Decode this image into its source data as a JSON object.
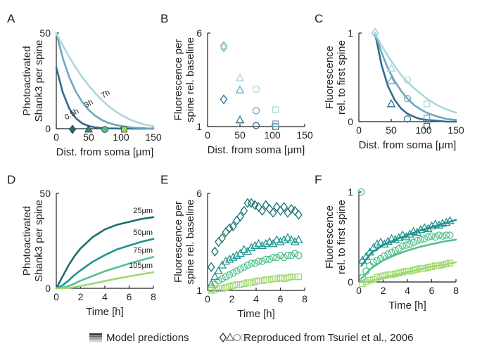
{
  "colors": {
    "dark": "#1f5f78",
    "c25": "#2a6f8c",
    "c50": "#4f8fae",
    "c75": "#7fb0c6",
    "c105": "#9ecbd8",
    "g25": "#1a6e72",
    "g50": "#1f948f",
    "g75": "#53c08e",
    "g105": "#9fd86c",
    "c05": "#2e6c8e",
    "c3h": "#6ea7c0",
    "c7h": "#a8d8e0"
  },
  "legend": {
    "model_label": "Model predictions",
    "data_label": "Reproduced from Tsuriel et al., 2006"
  },
  "chart_data": [
    {
      "panel": "A",
      "type": "line",
      "ylabel": [
        "Photoactivated",
        "Shank3 per spine"
      ],
      "xlabel": "Dist. from soma [μm]",
      "xlim": [
        0,
        150
      ],
      "ylim": [
        0,
        50
      ],
      "xticks": [
        0,
        50,
        100,
        150
      ],
      "yticks": [
        0,
        50
      ],
      "series": [
        {
          "name": "0.5h",
          "x": [
            0,
            10,
            20,
            30,
            40,
            50,
            60,
            70,
            80,
            90,
            100,
            110,
            120,
            130,
            140,
            150
          ],
          "y": [
            32,
            19,
            10.5,
            5.5,
            2.8,
            1.4,
            0.7,
            0.35,
            0.18,
            0.1,
            0.05,
            0.02,
            0.01,
            0,
            0,
            0
          ]
        },
        {
          "name": "3h",
          "x": [
            0,
            10,
            20,
            30,
            40,
            50,
            60,
            70,
            80,
            90,
            100,
            110,
            120,
            130,
            140,
            150
          ],
          "y": [
            50,
            37,
            27,
            19.5,
            14,
            9.8,
            6.8,
            4.6,
            3.1,
            2.1,
            1.4,
            0.9,
            0.55,
            0.35,
            0.2,
            0.12
          ]
        },
        {
          "name": "7h",
          "x": [
            0,
            10,
            20,
            30,
            40,
            50,
            60,
            70,
            80,
            90,
            100,
            110,
            120,
            130,
            140,
            150
          ],
          "y": [
            50,
            43.5,
            37.5,
            32,
            27,
            22.6,
            18.6,
            15.1,
            12,
            9.4,
            7.2,
            5.4,
            3.9,
            2.8,
            1.9,
            1.3
          ]
        }
      ],
      "markers": [
        {
          "x": 25,
          "shape": "diamond",
          "label": "25"
        },
        {
          "x": 50,
          "shape": "triangle",
          "label": "50"
        },
        {
          "x": 75,
          "shape": "circle",
          "label": "75"
        },
        {
          "x": 105,
          "shape": "square",
          "label": "105"
        }
      ]
    },
    {
      "panel": "B",
      "type": "scatter",
      "ylabel": [
        "Fluorescence per",
        "spine rel. baseline"
      ],
      "xlabel": "Dist. from soma [μm]",
      "xlim": [
        0,
        150
      ],
      "ylim": [
        1,
        6
      ],
      "xticks": [
        0,
        50,
        100,
        150
      ],
      "yticks": [
        1,
        6
      ],
      "series": [
        {
          "name": "0.5h",
          "points": [
            [
              25,
              2.45
            ],
            [
              50,
              1.35
            ],
            [
              75,
              1.05
            ],
            [
              105,
              1.0
            ]
          ]
        },
        {
          "name": "3h",
          "points": [
            [
              25,
              5.3
            ],
            [
              50,
              2.95
            ],
            [
              75,
              1.85
            ],
            [
              105,
              1.15
            ]
          ]
        },
        {
          "name": "7h",
          "points": [
            [
              25,
              5.2
            ],
            [
              50,
              3.6
            ],
            [
              75,
              3.0
            ],
            [
              105,
              1.9
            ]
          ]
        }
      ]
    },
    {
      "panel": "C",
      "type": "line+scatter",
      "ylabel": [
        "Fluorescence",
        "rel. to first spine"
      ],
      "xlabel": "Dist. from soma [μm]",
      "xlim": [
        0,
        150
      ],
      "ylim": [
        0,
        1
      ],
      "xticks": [
        0,
        50,
        100,
        150
      ],
      "yticks": [
        0,
        1
      ],
      "series": [
        {
          "name": "0.5h",
          "x": [
            25,
            35,
            45,
            55,
            65,
            75,
            85,
            95,
            105,
            120,
            135,
            150
          ],
          "y": [
            1,
            0.64,
            0.4,
            0.25,
            0.15,
            0.09,
            0.055,
            0.03,
            0.02,
            0.01,
            0,
            0
          ],
          "points": [
            [
              25,
              1.0
            ],
            [
              50,
              0.2
            ],
            [
              75,
              0.03
            ],
            [
              105,
              -0.05
            ]
          ]
        },
        {
          "name": "3h",
          "x": [
            25,
            35,
            45,
            55,
            65,
            75,
            85,
            95,
            105,
            120,
            135,
            150
          ],
          "y": [
            1,
            0.78,
            0.6,
            0.46,
            0.35,
            0.26,
            0.19,
            0.14,
            0.1,
            0.06,
            0.03,
            0.02
          ],
          "points": [
            [
              25,
              1.0
            ],
            [
              50,
              0.46
            ],
            [
              75,
              0.26
            ],
            [
              105,
              0.04
            ]
          ]
        },
        {
          "name": "7h",
          "x": [
            25,
            35,
            45,
            55,
            65,
            75,
            85,
            95,
            105,
            120,
            135,
            150
          ],
          "y": [
            1,
            0.86,
            0.74,
            0.63,
            0.53,
            0.45,
            0.38,
            0.32,
            0.26,
            0.19,
            0.14,
            0.1
          ],
          "points": [
            [
              25,
              1.0
            ],
            [
              50,
              0.6
            ],
            [
              75,
              0.47
            ],
            [
              105,
              0.2
            ]
          ]
        }
      ]
    },
    {
      "panel": "D",
      "type": "line",
      "ylabel": [
        "Photoactivated",
        "Shank3 per spine"
      ],
      "xlabel": "Time [h]",
      "xlim": [
        0,
        8
      ],
      "ylim": [
        0,
        50
      ],
      "xticks": [
        0,
        2,
        4,
        6,
        8
      ],
      "yticks": [
        0,
        50
      ],
      "series": [
        {
          "name": "25μm",
          "x": [
            0,
            0.5,
            1,
            1.5,
            2,
            3,
            4,
            5,
            6,
            7,
            8
          ],
          "y": [
            0,
            6,
            12,
            17,
            21,
            27,
            31,
            33.5,
            35,
            36.5,
            37.5
          ]
        },
        {
          "name": "50μm",
          "x": [
            0,
            0.5,
            1,
            1.5,
            2,
            3,
            4,
            5,
            6,
            7,
            8
          ],
          "y": [
            0,
            1.5,
            4,
            7,
            9.5,
            14,
            17.5,
            20.5,
            22.5,
            24.5,
            26
          ]
        },
        {
          "name": "75μm",
          "x": [
            0,
            0.5,
            1,
            1.5,
            2,
            3,
            4,
            5,
            6,
            7,
            8
          ],
          "y": [
            0,
            0.3,
            1.2,
            2.5,
            4,
            6.5,
            9,
            11,
            13,
            14.8,
            16.5
          ]
        },
        {
          "name": "105μm",
          "x": [
            0,
            0.5,
            1,
            1.5,
            2,
            3,
            4,
            5,
            6,
            7,
            8
          ],
          "y": [
            0,
            0,
            0.2,
            0.6,
            1.2,
            2.5,
            3.8,
            5.1,
            6.3,
            7.4,
            8.5
          ]
        }
      ]
    },
    {
      "panel": "E",
      "type": "scatter",
      "ylabel": [
        "Fluorescence per",
        "spine rel. baseline"
      ],
      "xlabel": "Time [h]",
      "xlim": [
        0,
        8
      ],
      "ylim": [
        1,
        6
      ],
      "xticks": [
        0,
        2,
        4,
        6,
        8
      ],
      "yticks": [
        1,
        6
      ],
      "series": [
        {
          "name": "25μm",
          "x": [
            0.3,
            0.6,
            0.9,
            1.2,
            1.5,
            1.8,
            2.1,
            2.4,
            2.7,
            3.0,
            3.3,
            3.6,
            3.9,
            4.2,
            4.5,
            4.8,
            5.1,
            5.4,
            5.7,
            6.0,
            6.3,
            6.6,
            6.9,
            7.2,
            7.5
          ],
          "y": [
            2.2,
            3.0,
            3.5,
            3.7,
            4.0,
            4.2,
            4.3,
            4.6,
            4.8,
            5.1,
            5.5,
            5.5,
            5.4,
            5.3,
            5.1,
            5.4,
            5.2,
            5.0,
            5.3,
            5.1,
            5.3,
            5.0,
            5.2,
            5.1,
            4.9
          ]
        },
        {
          "name": "50μm",
          "x": [
            0.3,
            0.6,
            0.9,
            1.2,
            1.5,
            1.8,
            2.1,
            2.4,
            2.7,
            3.0,
            3.3,
            3.6,
            3.9,
            4.2,
            4.5,
            4.8,
            5.1,
            5.4,
            5.7,
            6.0,
            6.3,
            6.6,
            6.9,
            7.2,
            7.5
          ],
          "y": [
            1.3,
            1.7,
            2.0,
            2.3,
            2.5,
            2.6,
            2.7,
            2.8,
            2.9,
            3.1,
            3.0,
            3.2,
            3.3,
            3.4,
            3.3,
            3.4,
            3.5,
            3.4,
            3.6,
            3.5,
            3.6,
            3.7,
            3.6,
            3.5,
            3.6
          ]
        },
        {
          "name": "75μm",
          "x": [
            0.3,
            0.6,
            0.9,
            1.2,
            1.5,
            1.8,
            2.1,
            2.4,
            2.7,
            3.0,
            3.3,
            3.6,
            3.9,
            4.2,
            4.5,
            4.8,
            5.1,
            5.4,
            5.7,
            6.0,
            6.3,
            6.6,
            6.9,
            7.2,
            7.5
          ],
          "y": [
            1.1,
            1.3,
            1.5,
            1.6,
            1.7,
            1.8,
            1.9,
            2.0,
            2.1,
            2.2,
            2.3,
            2.4,
            2.4,
            2.5,
            2.5,
            2.6,
            2.6,
            2.7,
            2.7,
            2.8,
            2.7,
            2.8,
            2.8,
            2.9,
            2.8
          ]
        },
        {
          "name": "105μm",
          "x": [
            0.3,
            0.6,
            0.9,
            1.2,
            1.5,
            1.8,
            2.1,
            2.4,
            2.7,
            3.0,
            3.3,
            3.6,
            3.9,
            4.2,
            4.5,
            4.8,
            5.1,
            5.4,
            5.7,
            6.0,
            6.3,
            6.6,
            6.9,
            7.2,
            7.5
          ],
          "y": [
            1.0,
            1.05,
            1.1,
            1.1,
            1.15,
            1.2,
            1.25,
            1.3,
            1.3,
            1.35,
            1.4,
            1.4,
            1.45,
            1.5,
            1.5,
            1.55,
            1.55,
            1.6,
            1.6,
            1.65,
            1.6,
            1.65,
            1.7,
            1.7,
            1.7
          ]
        }
      ]
    },
    {
      "panel": "F",
      "type": "line+scatter",
      "ylabel": [
        "Fluorescence",
        "rel. to first spine"
      ],
      "xlabel": "Time [h]",
      "xlim": [
        0,
        8
      ],
      "ylim": [
        0,
        1
      ],
      "xticks": [
        0,
        2,
        4,
        6,
        8
      ],
      "yticks": [
        0,
        1
      ],
      "series": [
        {
          "name": "50μm",
          "x": [
            0.2,
            1,
            2,
            3,
            4,
            5,
            6,
            7,
            8
          ],
          "y": [
            0.18,
            0.32,
            0.41,
            0.47,
            0.52,
            0.57,
            0.61,
            0.65,
            0.69
          ],
          "points_x": [
            0.3,
            0.6,
            0.9,
            1.2,
            1.5,
            1.8,
            2.1,
            2.4,
            2.7,
            3.0,
            3.3,
            3.6,
            3.9,
            4.2,
            4.5,
            4.8,
            5.1,
            5.4,
            5.7,
            6.0,
            6.3,
            6.6,
            6.9,
            7.2,
            7.5
          ],
          "points_y": [
            0.24,
            0.28,
            0.33,
            0.38,
            0.42,
            0.44,
            0.42,
            0.45,
            0.48,
            0.47,
            0.49,
            0.52,
            0.5,
            0.53,
            0.56,
            0.55,
            0.58,
            0.6,
            0.59,
            0.62,
            0.64,
            0.63,
            0.65,
            0.66,
            0.68
          ]
        },
        {
          "name": "75μm",
          "x": [
            0.2,
            1,
            2,
            3,
            4,
            5,
            6,
            7,
            8
          ],
          "y": [
            0.04,
            0.15,
            0.24,
            0.3,
            0.35,
            0.39,
            0.42,
            0.45,
            0.47
          ],
          "points_x": [
            0.3,
            0.6,
            0.9,
            1.2,
            1.5,
            1.8,
            2.1,
            2.4,
            2.7,
            3.0,
            3.3,
            3.6,
            3.9,
            4.2,
            4.5,
            4.8,
            5.1,
            5.4,
            5.7,
            6.0,
            6.3,
            6.6,
            6.9,
            7.2,
            7.5
          ],
          "points_y": [
            0.05,
            0.12,
            0.18,
            0.22,
            0.24,
            0.26,
            0.29,
            0.31,
            0.33,
            0.35,
            0.37,
            0.4,
            0.41,
            0.42,
            0.44,
            0.46,
            0.47,
            0.48,
            0.5,
            0.51,
            0.5,
            0.52,
            0.51,
            0.52,
            0.52
          ]
        },
        {
          "name": "105μm",
          "x": [
            0.2,
            1,
            2,
            3,
            4,
            5,
            6,
            7,
            8
          ],
          "y": [
            0,
            0.01,
            0.05,
            0.08,
            0.11,
            0.14,
            0.17,
            0.19,
            0.22
          ],
          "points_x": [
            0.3,
            0.6,
            0.9,
            1.2,
            1.5,
            1.8,
            2.1,
            2.4,
            2.7,
            3.0,
            3.3,
            3.6,
            3.9,
            4.2,
            4.5,
            4.8,
            5.1,
            5.4,
            5.7,
            6.0,
            6.3,
            6.6,
            6.9,
            7.2,
            7.5
          ],
          "points_y": [
            -0.02,
            0.0,
            0.02,
            0.03,
            0.05,
            0.06,
            0.07,
            0.08,
            0.08,
            0.09,
            0.1,
            0.11,
            0.12,
            0.12,
            0.13,
            0.14,
            0.15,
            0.15,
            0.16,
            0.17,
            0.18,
            0.18,
            0.19,
            0.2,
            0.21
          ]
        },
        {
          "name": "25μm",
          "x": [],
          "y": [],
          "points_x": [
            0.2
          ],
          "points_y": [
            1.0
          ]
        }
      ]
    }
  ]
}
